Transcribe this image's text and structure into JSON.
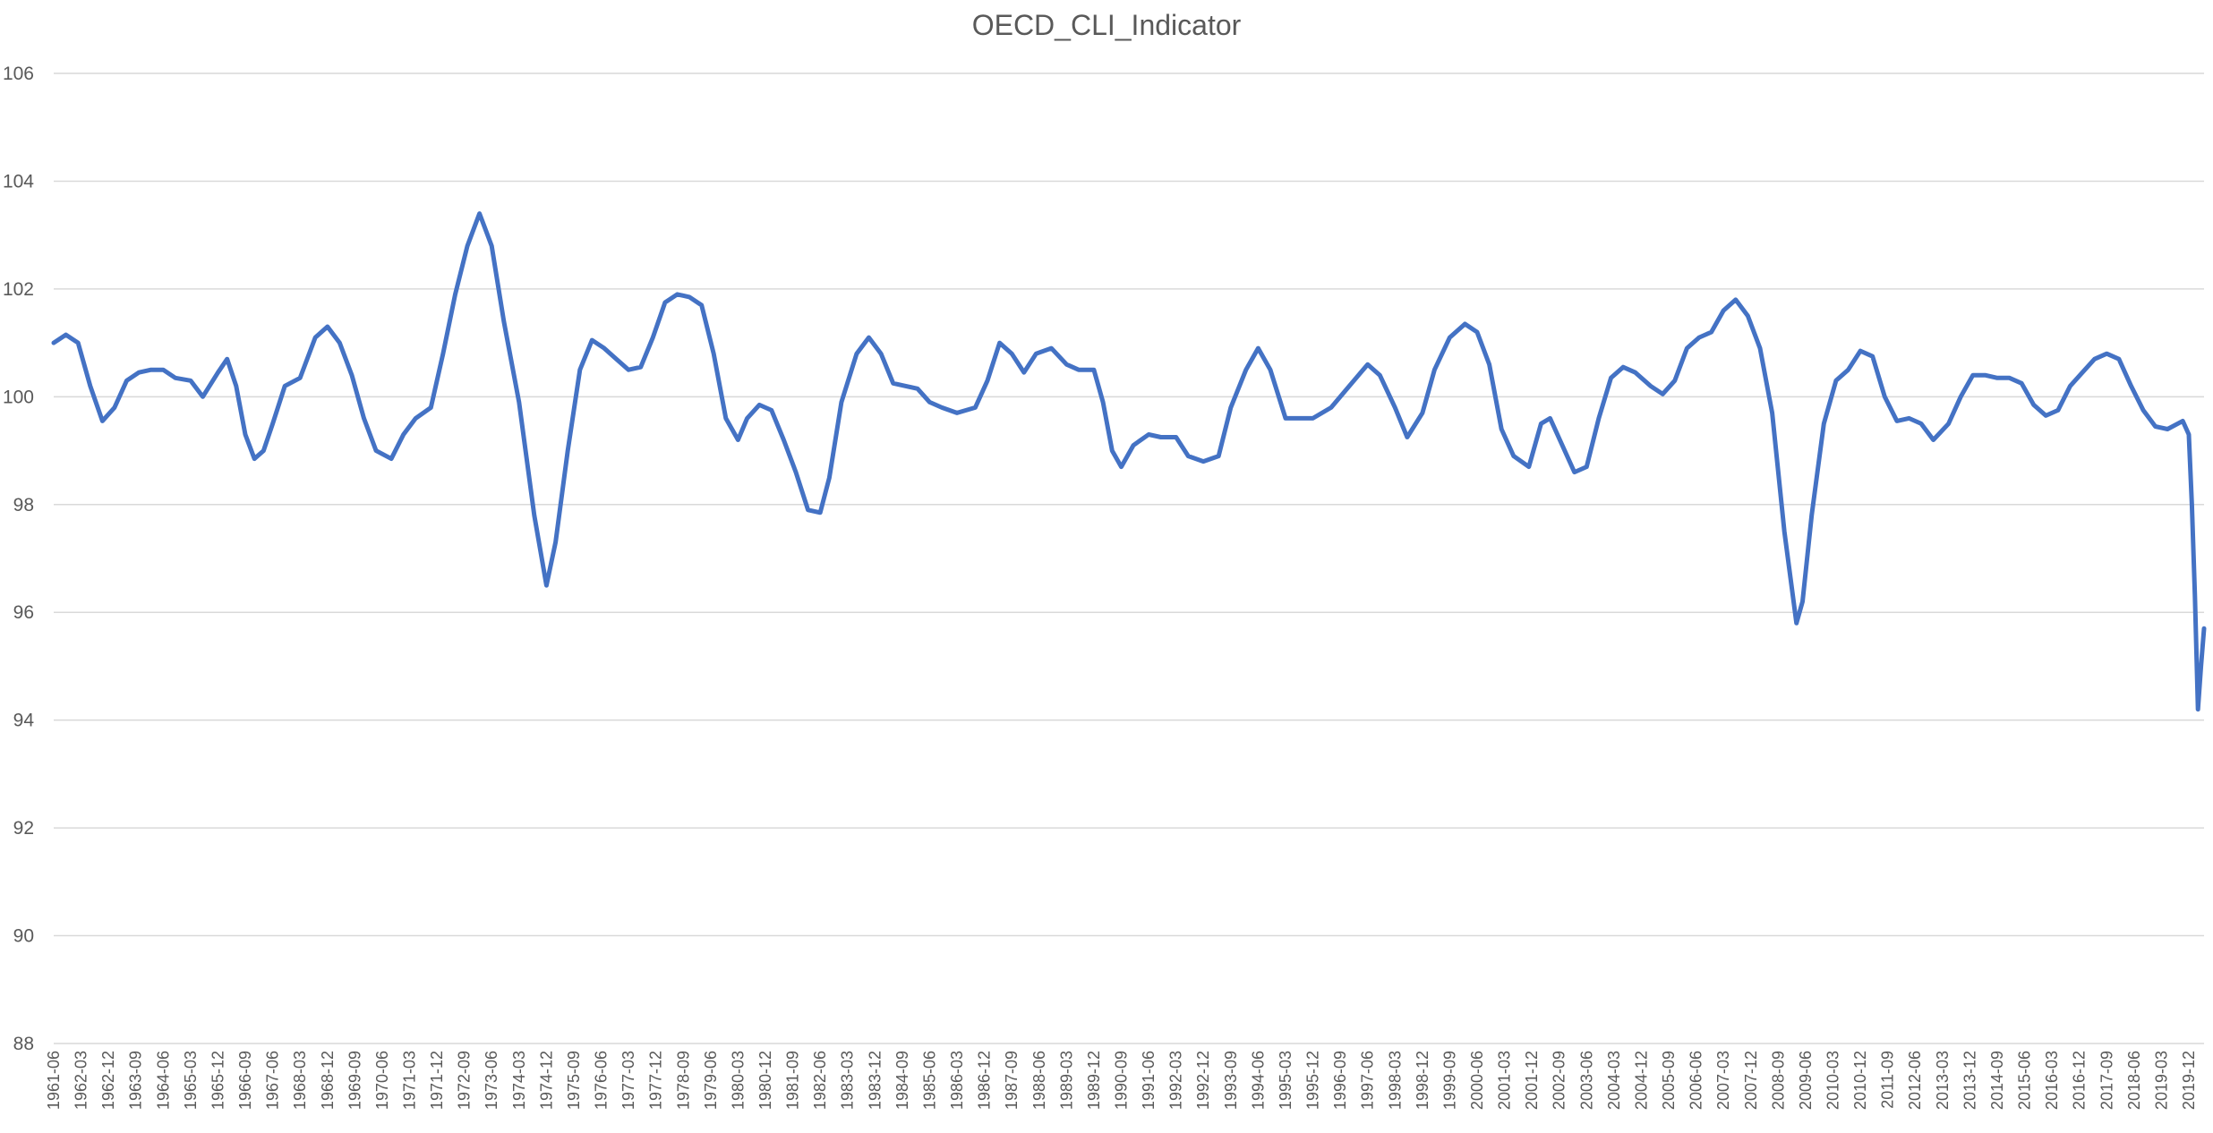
{
  "chart_data": {
    "type": "line",
    "title": "OECD_CLI_Indicator",
    "xlabel": "",
    "ylabel": "",
    "ylim": [
      88,
      106
    ],
    "y_ticks": [
      88,
      90,
      92,
      94,
      96,
      98,
      100,
      102,
      104,
      106
    ],
    "grid": true,
    "legend": "none",
    "x_range": [
      "1961-06",
      "2020-05"
    ],
    "x_tick_labels": [
      "1961-06",
      "1962-03",
      "1962-12",
      "1963-09",
      "1964-06",
      "1965-03",
      "1965-12",
      "1966-09",
      "1967-06",
      "1968-03",
      "1968-12",
      "1969-09",
      "1970-06",
      "1971-03",
      "1971-12",
      "1972-09",
      "1973-06",
      "1974-03",
      "1974-12",
      "1975-09",
      "1976-06",
      "1977-03",
      "1977-12",
      "1978-09",
      "1979-06",
      "1980-03",
      "1980-12",
      "1981-09",
      "1982-06",
      "1983-03",
      "1983-12",
      "1984-09",
      "1985-06",
      "1986-03",
      "1986-12",
      "1987-09",
      "1988-06",
      "1989-03",
      "1989-12",
      "1990-09",
      "1991-06",
      "1992-03",
      "1992-12",
      "1993-09",
      "1994-06",
      "1995-03",
      "1995-12",
      "1996-09",
      "1997-06",
      "1998-03",
      "1998-12",
      "1999-09",
      "2000-06",
      "2001-03",
      "2001-12",
      "2002-09",
      "2003-06",
      "2004-03",
      "2004-12",
      "2005-09",
      "2006-06",
      "2007-03",
      "2007-12",
      "2008-09",
      "2009-06",
      "2010-03",
      "2010-12",
      "2011-09",
      "2012-06",
      "2013-03",
      "2013-12",
      "2014-09",
      "2015-06",
      "2016-03",
      "2016-12",
      "2017-09",
      "2018-06",
      "2019-03",
      "2019-12"
    ],
    "series": [
      {
        "color": "#4472c4",
        "points": [
          [
            "1961-06",
            101.0
          ],
          [
            "1961-10",
            101.15
          ],
          [
            "1962-02",
            101.0
          ],
          [
            "1962-06",
            100.2
          ],
          [
            "1962-10",
            99.55
          ],
          [
            "1963-02",
            99.8
          ],
          [
            "1963-06",
            100.3
          ],
          [
            "1963-10",
            100.45
          ],
          [
            "1964-02",
            100.5
          ],
          [
            "1964-06",
            100.5
          ],
          [
            "1964-10",
            100.35
          ],
          [
            "1965-03",
            100.3
          ],
          [
            "1965-07",
            100.0
          ],
          [
            "1965-12",
            100.45
          ],
          [
            "1966-03",
            100.7
          ],
          [
            "1966-06",
            100.2
          ],
          [
            "1966-09",
            99.3
          ],
          [
            "1966-12",
            98.85
          ],
          [
            "1967-03",
            99.0
          ],
          [
            "1967-06",
            99.5
          ],
          [
            "1967-10",
            100.2
          ],
          [
            "1968-03",
            100.35
          ],
          [
            "1968-08",
            101.1
          ],
          [
            "1968-12",
            101.3
          ],
          [
            "1969-04",
            101.0
          ],
          [
            "1969-08",
            100.4
          ],
          [
            "1969-12",
            99.6
          ],
          [
            "1970-04",
            99.0
          ],
          [
            "1970-09",
            98.85
          ],
          [
            "1971-01",
            99.3
          ],
          [
            "1971-05",
            99.6
          ],
          [
            "1971-10",
            99.8
          ],
          [
            "1972-02",
            100.8
          ],
          [
            "1972-06",
            101.9
          ],
          [
            "1972-10",
            102.8
          ],
          [
            "1973-02",
            103.4
          ],
          [
            "1973-06",
            102.8
          ],
          [
            "1973-10",
            101.4
          ],
          [
            "1974-03",
            99.9
          ],
          [
            "1974-08",
            97.8
          ],
          [
            "1974-12",
            96.5
          ],
          [
            "1975-03",
            97.3
          ],
          [
            "1975-07",
            99.0
          ],
          [
            "1975-11",
            100.5
          ],
          [
            "1976-03",
            101.05
          ],
          [
            "1976-07",
            100.9
          ],
          [
            "1976-11",
            100.7
          ],
          [
            "1977-03",
            100.5
          ],
          [
            "1977-07",
            100.55
          ],
          [
            "1977-11",
            101.1
          ],
          [
            "1978-03",
            101.75
          ],
          [
            "1978-07",
            101.9
          ],
          [
            "1978-11",
            101.85
          ],
          [
            "1979-03",
            101.7
          ],
          [
            "1979-07",
            100.8
          ],
          [
            "1979-11",
            99.6
          ],
          [
            "1980-03",
            99.2
          ],
          [
            "1980-06",
            99.6
          ],
          [
            "1980-10",
            99.85
          ],
          [
            "1981-02",
            99.75
          ],
          [
            "1981-06",
            99.2
          ],
          [
            "1981-10",
            98.6
          ],
          [
            "1982-02",
            97.9
          ],
          [
            "1982-06",
            97.85
          ],
          [
            "1982-09",
            98.5
          ],
          [
            "1983-01",
            99.9
          ],
          [
            "1983-06",
            100.8
          ],
          [
            "1983-10",
            101.1
          ],
          [
            "1984-02",
            100.8
          ],
          [
            "1984-06",
            100.25
          ],
          [
            "1984-10",
            100.2
          ],
          [
            "1985-02",
            100.15
          ],
          [
            "1985-06",
            99.9
          ],
          [
            "1985-10",
            99.8
          ],
          [
            "1986-03",
            99.7
          ],
          [
            "1986-09",
            99.8
          ],
          [
            "1987-01",
            100.3
          ],
          [
            "1987-05",
            101.0
          ],
          [
            "1987-09",
            100.8
          ],
          [
            "1988-01",
            100.45
          ],
          [
            "1988-05",
            100.8
          ],
          [
            "1988-10",
            100.9
          ],
          [
            "1989-03",
            100.6
          ],
          [
            "1989-07",
            100.5
          ],
          [
            "1989-12",
            100.5
          ],
          [
            "1990-03",
            99.9
          ],
          [
            "1990-06",
            99.0
          ],
          [
            "1990-09",
            98.7
          ],
          [
            "1991-01",
            99.1
          ],
          [
            "1991-06",
            99.3
          ],
          [
            "1991-10",
            99.25
          ],
          [
            "1992-03",
            99.25
          ],
          [
            "1992-07",
            98.9
          ],
          [
            "1992-12",
            98.8
          ],
          [
            "1993-05",
            98.9
          ],
          [
            "1993-09",
            99.8
          ],
          [
            "1994-02",
            100.5
          ],
          [
            "1994-06",
            100.9
          ],
          [
            "1994-10",
            100.5
          ],
          [
            "1995-03",
            99.6
          ],
          [
            "1995-07",
            99.6
          ],
          [
            "1995-12",
            99.6
          ],
          [
            "1996-06",
            99.8
          ],
          [
            "1996-12",
            100.2
          ],
          [
            "1997-06",
            100.6
          ],
          [
            "1997-10",
            100.4
          ],
          [
            "1998-03",
            99.8
          ],
          [
            "1998-07",
            99.25
          ],
          [
            "1998-12",
            99.7
          ],
          [
            "1999-04",
            100.5
          ],
          [
            "1999-09",
            101.1
          ],
          [
            "2000-02",
            101.35
          ],
          [
            "2000-06",
            101.2
          ],
          [
            "2000-10",
            100.6
          ],
          [
            "2001-02",
            99.4
          ],
          [
            "2001-06",
            98.9
          ],
          [
            "2001-11",
            98.7
          ],
          [
            "2002-03",
            99.5
          ],
          [
            "2002-06",
            99.6
          ],
          [
            "2002-10",
            99.1
          ],
          [
            "2003-02",
            98.6
          ],
          [
            "2003-06",
            98.7
          ],
          [
            "2003-10",
            99.6
          ],
          [
            "2004-02",
            100.35
          ],
          [
            "2004-06",
            100.55
          ],
          [
            "2004-10",
            100.45
          ],
          [
            "2005-03",
            100.2
          ],
          [
            "2005-07",
            100.05
          ],
          [
            "2005-11",
            100.3
          ],
          [
            "2006-03",
            100.9
          ],
          [
            "2006-07",
            101.1
          ],
          [
            "2006-11",
            101.2
          ],
          [
            "2007-03",
            101.6
          ],
          [
            "2007-07",
            101.8
          ],
          [
            "2007-11",
            101.5
          ],
          [
            "2008-03",
            100.9
          ],
          [
            "2008-07",
            99.7
          ],
          [
            "2008-11",
            97.5
          ],
          [
            "2009-03",
            95.8
          ],
          [
            "2009-05",
            96.2
          ],
          [
            "2009-08",
            97.8
          ],
          [
            "2009-12",
            99.5
          ],
          [
            "2010-04",
            100.3
          ],
          [
            "2010-08",
            100.5
          ],
          [
            "2010-12",
            100.85
          ],
          [
            "2011-04",
            100.75
          ],
          [
            "2011-08",
            100.0
          ],
          [
            "2011-12",
            99.55
          ],
          [
            "2012-04",
            99.6
          ],
          [
            "2012-08",
            99.5
          ],
          [
            "2012-12",
            99.2
          ],
          [
            "2013-05",
            99.5
          ],
          [
            "2013-09",
            100.0
          ],
          [
            "2014-01",
            100.4
          ],
          [
            "2014-05",
            100.4
          ],
          [
            "2014-09",
            100.35
          ],
          [
            "2015-01",
            100.35
          ],
          [
            "2015-05",
            100.25
          ],
          [
            "2015-09",
            99.85
          ],
          [
            "2016-01",
            99.65
          ],
          [
            "2016-05",
            99.75
          ],
          [
            "2016-09",
            100.2
          ],
          [
            "2017-01",
            100.45
          ],
          [
            "2017-05",
            100.7
          ],
          [
            "2017-09",
            100.8
          ],
          [
            "2018-01",
            100.7
          ],
          [
            "2018-05",
            100.2
          ],
          [
            "2018-09",
            99.75
          ],
          [
            "2019-01",
            99.45
          ],
          [
            "2019-05",
            99.4
          ],
          [
            "2019-10",
            99.55
          ],
          [
            "2019-12",
            99.3
          ],
          [
            "2020-01",
            98.0
          ],
          [
            "2020-02",
            96.3
          ],
          [
            "2020-03",
            94.2
          ],
          [
            "2020-04",
            95.0
          ],
          [
            "2020-05",
            95.7
          ]
        ]
      }
    ]
  }
}
